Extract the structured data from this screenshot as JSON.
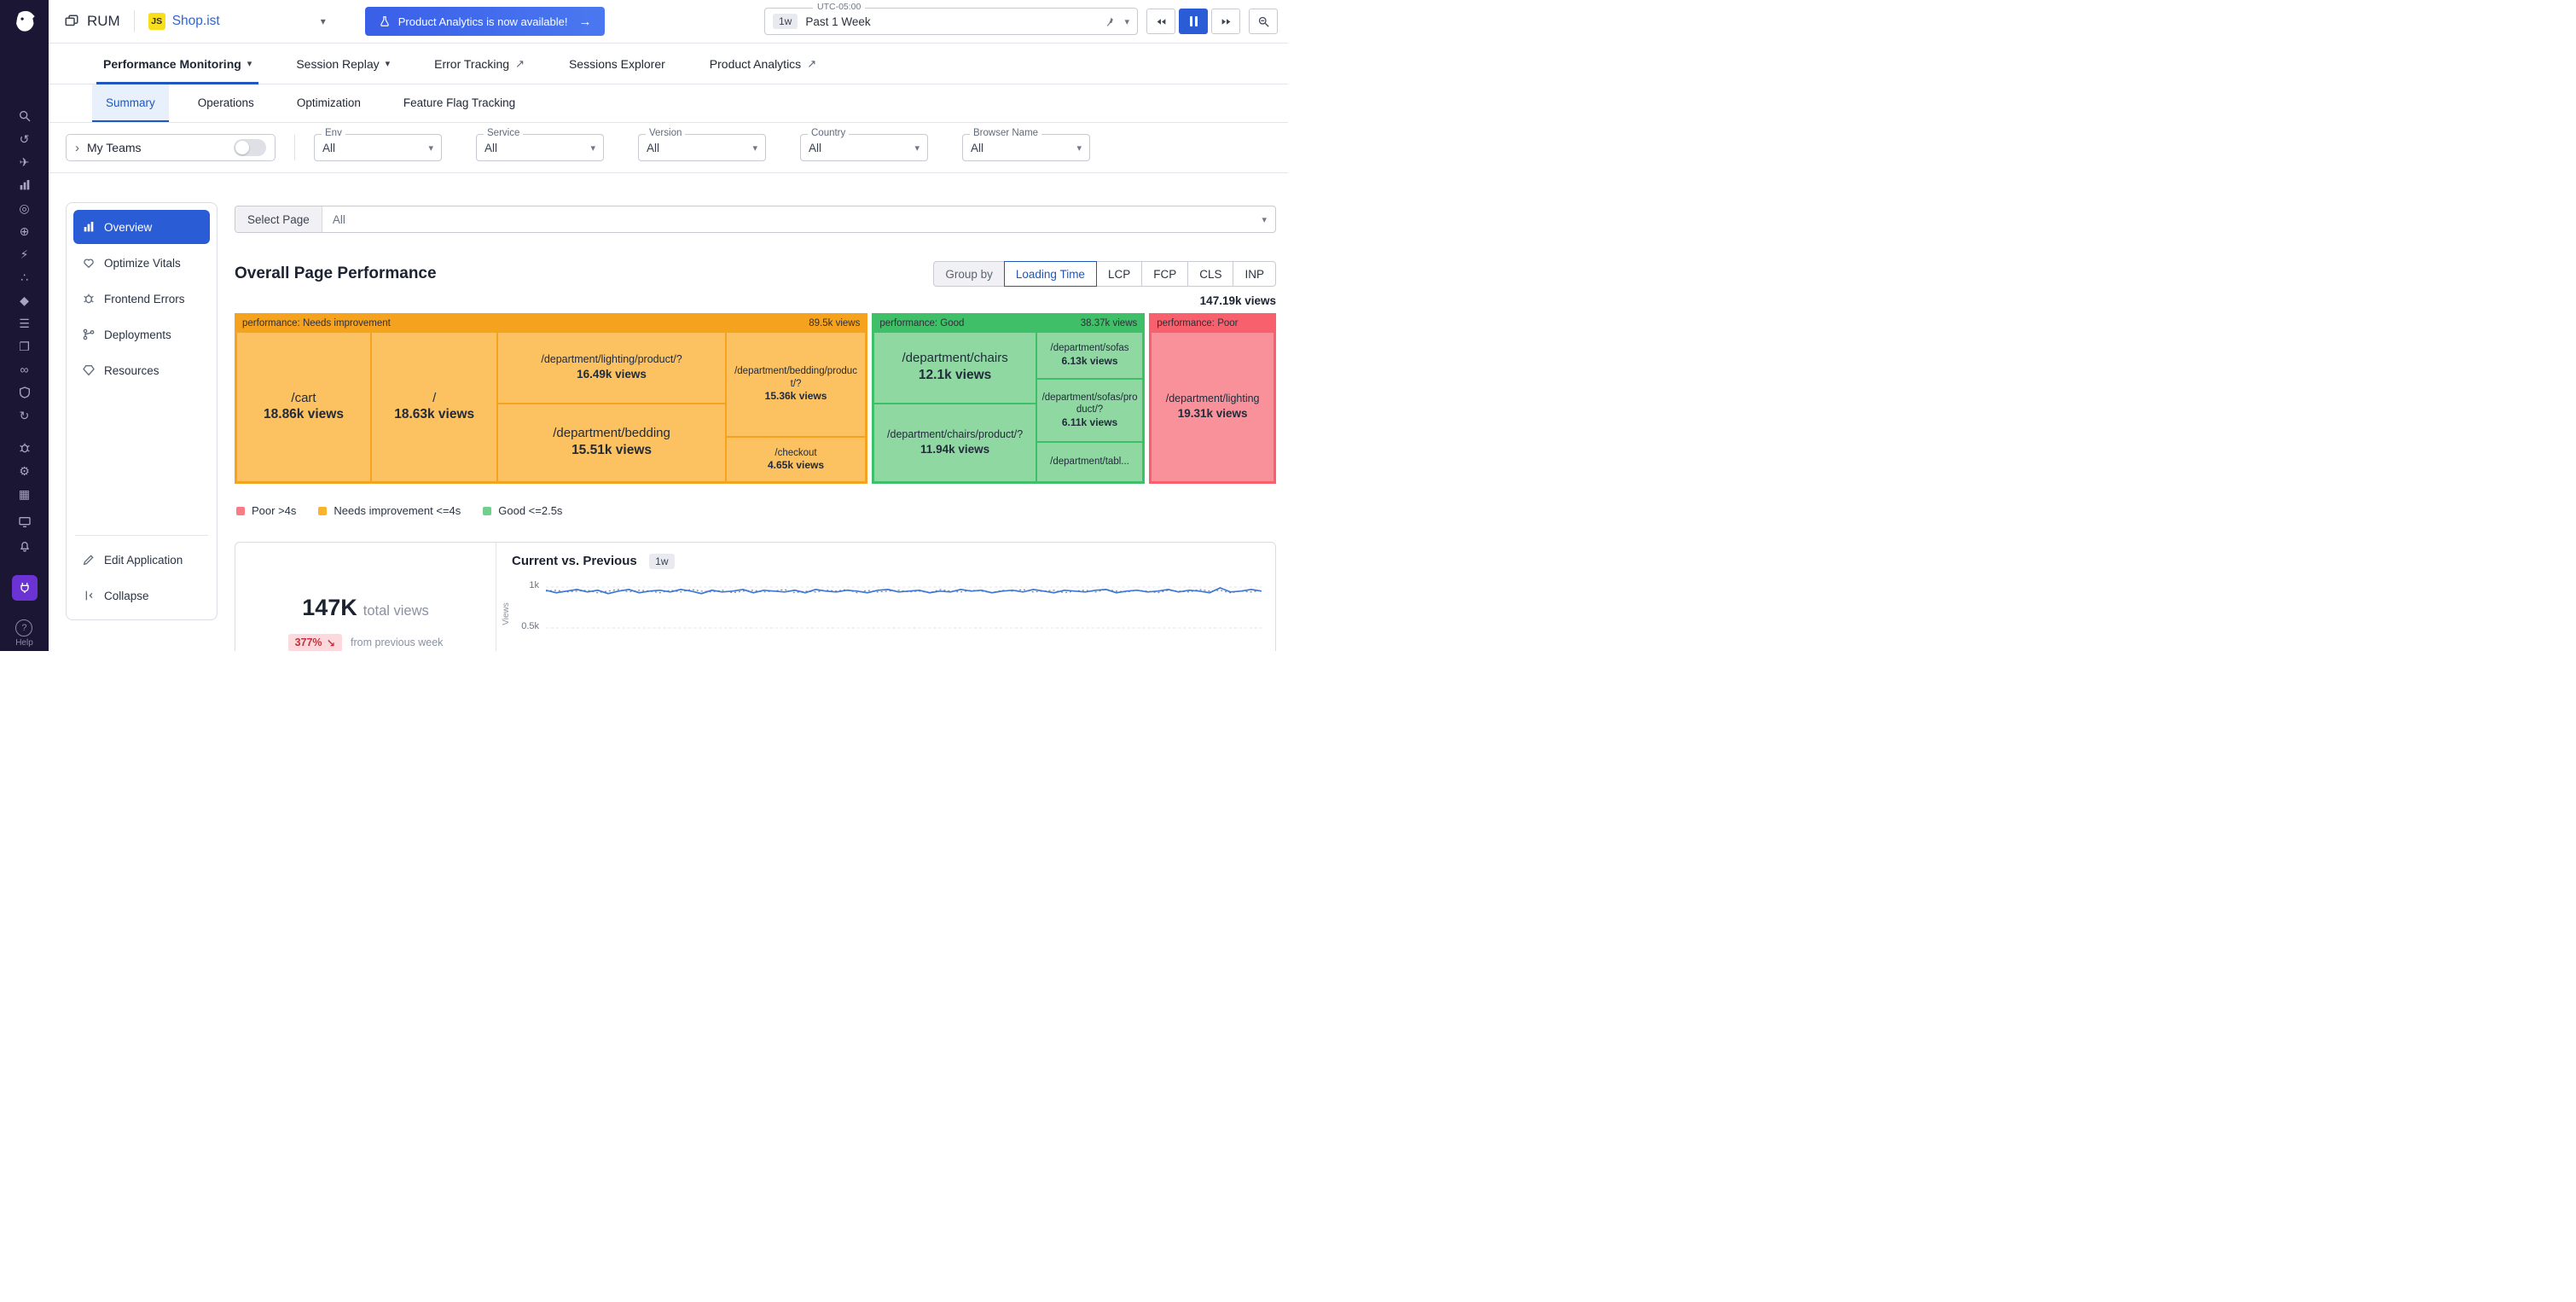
{
  "icons": {
    "caret": "▾",
    "external": "↗",
    "arrow": "→",
    "chevron": "›",
    "delta_down": "↘",
    "help": "?"
  },
  "rail": {
    "glyphs": {
      "magnifier": "⚲",
      "history": "↺",
      "paperplane": "✈",
      "target": "◎",
      "globe": "⊕",
      "bolt": "⚡",
      "cluster": "∴",
      "diamond": "◆",
      "menu": "☰",
      "windows": "❐",
      "infinity": "∞",
      "sync": "↻",
      "gear": "⚙",
      "grid": "▦"
    },
    "help_label": "Help"
  },
  "header": {
    "product_name": "RUM",
    "app": {
      "badge": "JS",
      "name": "Shop.ist"
    },
    "banner_label": "Product Analytics is now available!",
    "timezone": "UTC-05:00",
    "time_badge": "1w",
    "time_label": "Past 1 Week"
  },
  "nav": {
    "tabs": [
      {
        "label": "Performance Monitoring"
      },
      {
        "label": "Session Replay"
      },
      {
        "label": "Error Tracking"
      },
      {
        "label": "Sessions Explorer"
      },
      {
        "label": "Product Analytics"
      }
    ]
  },
  "subnav": {
    "tabs": [
      {
        "label": "Summary"
      },
      {
        "label": "Operations"
      },
      {
        "label": "Optimization"
      },
      {
        "label": "Feature Flag Tracking"
      }
    ]
  },
  "filters": {
    "my_teams_label": "My Teams",
    "fields": [
      {
        "label": "Env",
        "value": "All"
      },
      {
        "label": "Service",
        "value": "All"
      },
      {
        "label": "Version",
        "value": "All"
      },
      {
        "label": "Country",
        "value": "All"
      },
      {
        "label": "Browser Name",
        "value": "All"
      }
    ]
  },
  "sidebar": {
    "items": [
      {
        "label": "Overview"
      },
      {
        "label": "Optimize Vitals"
      },
      {
        "label": "Frontend Errors"
      },
      {
        "label": "Deployments"
      },
      {
        "label": "Resources"
      }
    ],
    "footer": [
      {
        "label": "Edit Application"
      },
      {
        "label": "Collapse"
      }
    ]
  },
  "toolbar": {
    "select_page_label": "Select Page",
    "select_page_value": "All"
  },
  "performance": {
    "title": "Overall Page Performance",
    "group_by_label": "Group by",
    "group_options": [
      "Loading Time",
      "LCP",
      "FCP",
      "CLS",
      "INP"
    ],
    "total_views": "147.19k views"
  },
  "treemap": {
    "groups": [
      {
        "label": "performance: Needs improvement",
        "views": "89.5k views",
        "color": "#f5a31f",
        "fill": "#fcc161",
        "cells": [
          {
            "name": "/cart",
            "views": "18.86k views"
          },
          {
            "name": "/",
            "views": "18.63k views"
          },
          {
            "name": "/department/lighting/product/?",
            "views": "16.49k views"
          },
          {
            "name": "/department/bedding",
            "views": "15.51k views"
          },
          {
            "name": "/department/bedding/product/?",
            "views": "15.36k views"
          },
          {
            "name": "/checkout",
            "views": "4.65k views"
          }
        ]
      },
      {
        "label": "performance: Good",
        "views": "38.37k views",
        "color": "#3fbf68",
        "fill": "#8fd8a2",
        "cells": [
          {
            "name": "/department/chairs",
            "views": "12.1k views"
          },
          {
            "name": "/department/sofas",
            "views": "6.13k views"
          },
          {
            "name": "/department/chairs/product/?",
            "views": "11.94k views"
          },
          {
            "name": "/department/sofas/product/?",
            "views": "6.11k views"
          },
          {
            "name": "/department/tabl...",
            "views": ""
          }
        ]
      },
      {
        "label": "performance: Poor",
        "views": "",
        "color": "#f9606d",
        "fill": "#f9919b",
        "cells": [
          {
            "name": "/department/lighting",
            "views": "19.31k views"
          }
        ]
      }
    ]
  },
  "legend": [
    {
      "label": "Poor >4s",
      "color": "#fa7a85"
    },
    {
      "label": "Needs improvement <=4s",
      "color": "#fcb32c"
    },
    {
      "label": "Good <=2.5s",
      "color": "#6fcf8b"
    }
  ],
  "stats": {
    "total": "147K",
    "total_suffix": "total views",
    "delta": "377%",
    "delta_note": "from previous week"
  },
  "trend": {
    "title": "Current vs. Previous",
    "badge": "1w",
    "ylabel": "Views",
    "yticks": [
      "1k",
      "0.5k"
    ],
    "current": [
      0.96,
      0.93,
      0.95,
      0.97,
      0.94,
      0.96,
      0.92,
      0.95,
      0.97,
      0.93,
      0.95,
      0.96,
      0.94,
      0.97,
      0.95,
      0.92,
      0.96,
      0.94,
      0.95,
      0.97,
      0.93,
      0.96,
      0.95,
      0.94,
      0.96,
      0.93,
      0.97,
      0.95,
      0.94,
      0.96,
      0.95,
      0.93,
      0.96,
      0.97,
      0.94,
      0.95,
      0.96,
      0.93,
      0.95,
      0.94,
      0.97,
      0.95,
      0.96,
      0.93,
      0.95,
      0.96,
      0.94,
      0.97,
      0.95,
      0.93,
      0.96,
      0.95,
      0.94,
      0.96,
      0.97,
      0.93,
      0.95,
      0.96,
      0.94,
      0.95,
      0.97,
      0.94,
      0.96,
      0.95,
      0.93,
      0.99,
      0.94,
      0.95,
      0.97,
      0.95
    ],
    "previous": [
      0.95,
      0.96,
      0.94,
      0.95,
      0.96,
      0.93,
      0.95,
      0.97,
      0.94,
      0.96,
      0.95,
      0.93,
      0.96,
      0.94,
      0.97,
      0.95,
      0.94,
      0.96,
      0.93,
      0.95,
      0.96,
      0.94,
      0.95,
      0.97,
      0.93,
      0.95,
      0.94,
      0.96,
      0.95,
      0.97,
      0.93,
      0.96,
      0.94,
      0.95,
      0.96,
      0.94,
      0.95,
      0.93,
      0.97,
      0.95,
      0.94,
      0.96,
      0.95,
      0.93,
      0.96,
      0.95,
      0.97,
      0.94,
      0.95,
      0.96,
      0.93,
      0.95,
      0.96,
      0.94,
      0.97,
      0.95,
      0.94,
      0.96,
      0.95,
      0.93,
      0.96,
      0.95,
      0.94,
      0.97,
      0.95,
      0.96,
      0.93,
      0.95,
      0.94,
      0.96
    ]
  }
}
